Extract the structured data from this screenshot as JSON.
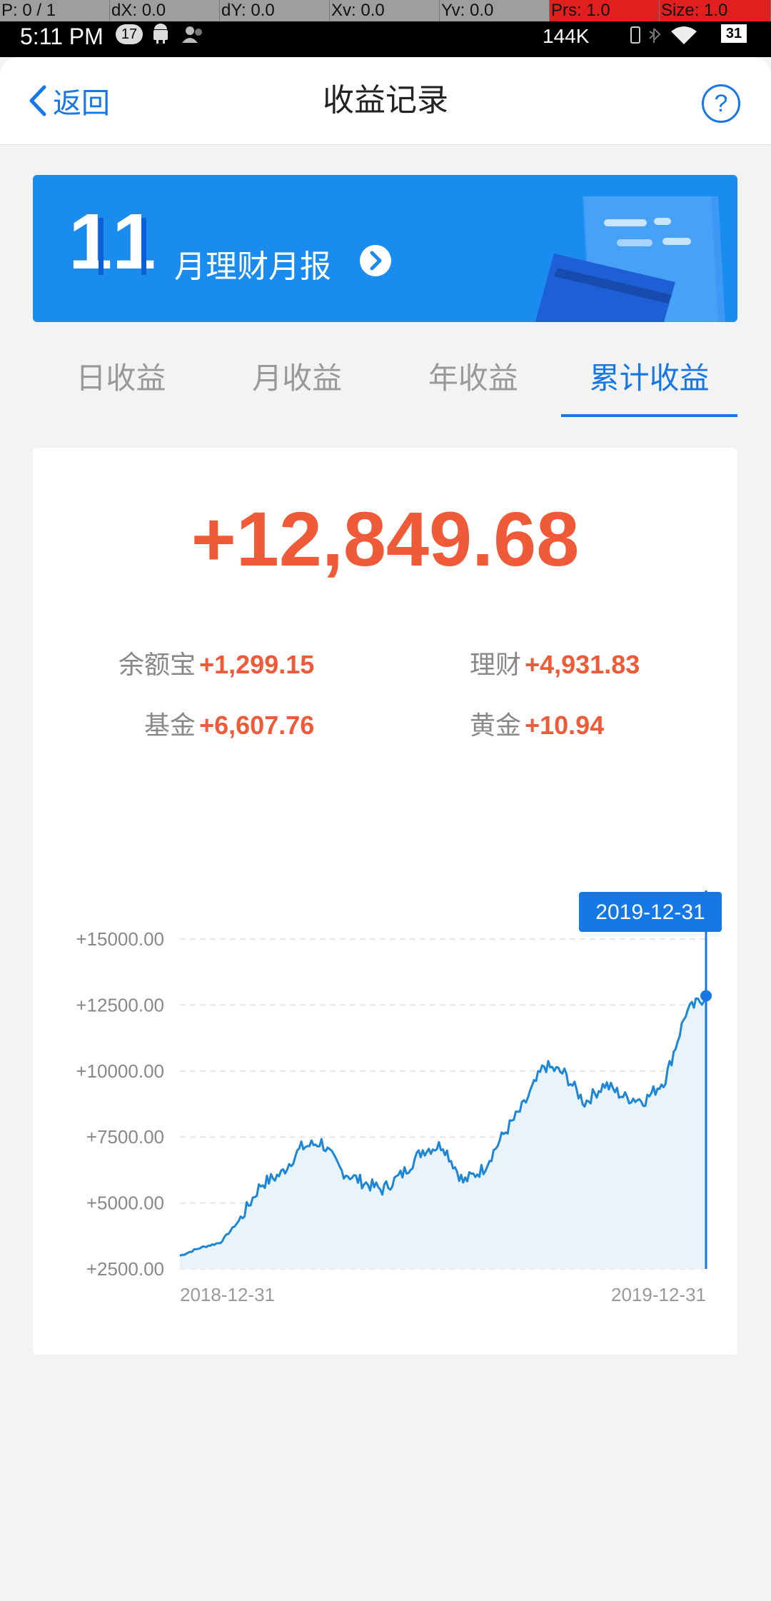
{
  "debug": {
    "p": "P: 0 / 1",
    "dx": "dX: 0.0",
    "dy": "dY: 0.0",
    "xv": "Xv: 0.0",
    "yv": "Yv: 0.0",
    "prs": "Prs: 1.0",
    "size": "Size: 1.0"
  },
  "status_bar": {
    "time": "5:11 PM",
    "badge": "17",
    "net_speed": "144K",
    "battery": "31"
  },
  "header": {
    "back_label": "返回",
    "title": "收益记录",
    "help_icon": "?"
  },
  "banner": {
    "month_number": "11",
    "text": "月理财月报"
  },
  "tabs": [
    {
      "label": "日收益",
      "active": false
    },
    {
      "label": "月收益",
      "active": false
    },
    {
      "label": "年收益",
      "active": false
    },
    {
      "label": "累计收益",
      "active": true
    }
  ],
  "summary": {
    "total": "+12,849.68",
    "breakdown": [
      {
        "label": "余额宝",
        "value": "+1,299.15"
      },
      {
        "label": "理财",
        "value": "+4,931.83"
      },
      {
        "label": "基金",
        "value": "+6,607.76"
      },
      {
        "label": "黄金",
        "value": "+10.94"
      }
    ]
  },
  "chart_data": {
    "type": "area",
    "title": "",
    "xlabel": "",
    "ylabel": "",
    "ylim": [
      2500,
      15000
    ],
    "y_ticks": [
      "+2500.00",
      "+5000.00",
      "+7500.00",
      "+10000.00",
      "+12500.00",
      "+15000.00"
    ],
    "x_ticks": [
      "2018-12-31",
      "2019-12-31"
    ],
    "grid": true,
    "tooltip_label": "2019-12-31",
    "tooltip_value": 12849.68,
    "line_color": "#1d86d6",
    "fill_color": "#e8f3fc",
    "x": [
      "2018-12-31",
      "2019-01-14",
      "2019-01-28",
      "2019-02-11",
      "2019-02-25",
      "2019-03-11",
      "2019-03-25",
      "2019-04-08",
      "2019-04-22",
      "2019-05-06",
      "2019-05-20",
      "2019-06-03",
      "2019-06-17",
      "2019-07-01",
      "2019-07-15",
      "2019-07-29",
      "2019-08-12",
      "2019-08-26",
      "2019-09-09",
      "2019-09-23",
      "2019-10-07",
      "2019-10-21",
      "2019-11-04",
      "2019-11-18",
      "2019-12-02",
      "2019-12-16",
      "2019-12-31"
    ],
    "values": [
      3000,
      3300,
      3500,
      4400,
      5700,
      6100,
      7100,
      7300,
      6200,
      5800,
      5500,
      6100,
      7000,
      7200,
      5800,
      6300,
      7600,
      8700,
      10200,
      9900,
      8800,
      9500,
      9000,
      8900,
      9700,
      12200,
      12850
    ]
  }
}
